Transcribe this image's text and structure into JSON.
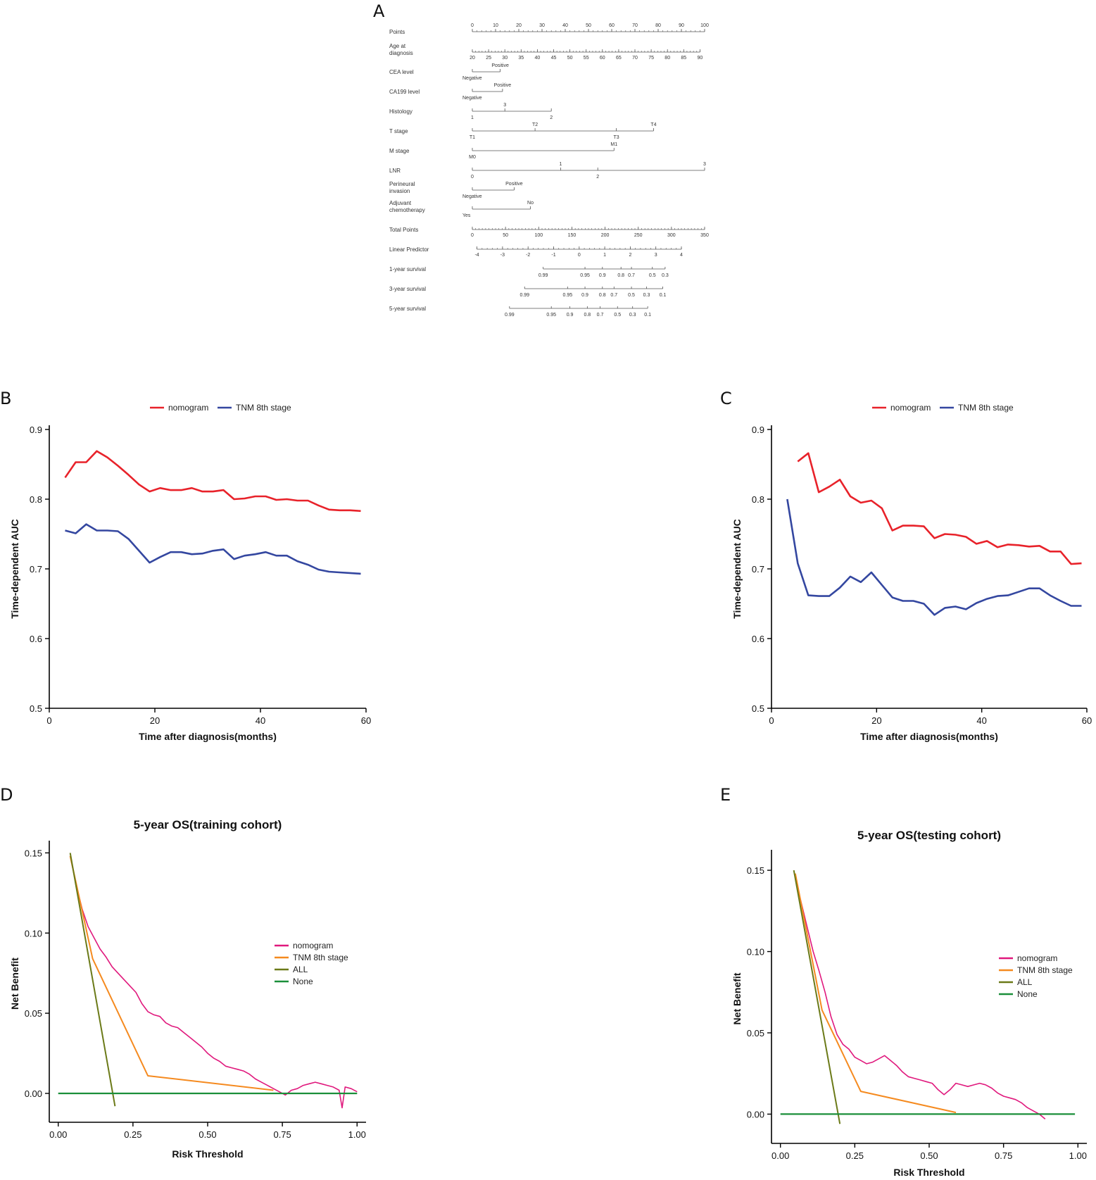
{
  "panels": {
    "A": "A",
    "B": "B",
    "C": "C",
    "D": "D",
    "E": "E"
  },
  "colors": {
    "nomogram_auc": "#e8222a",
    "tnm_auc": "#3447a0",
    "nomogram_dca": "#e0197d",
    "tnm_dca": "#f58a1f",
    "all_dca": "#6b7a18",
    "none_dca": "#1b8f3a"
  },
  "chart_data": [
    {
      "id": "A",
      "type": "table",
      "subtype": "nomogram",
      "rows": [
        {
          "label": "Points",
          "ticks": [
            "0",
            "10",
            "20",
            "30",
            "40",
            "50",
            "60",
            "70",
            "80",
            "90",
            "100"
          ]
        },
        {
          "label": "Age at diagnosis",
          "ticks": [
            "20",
            "25",
            "30",
            "35",
            "40",
            "45",
            "50",
            "55",
            "60",
            "65",
            "70",
            "75",
            "80",
            "85",
            "90"
          ]
        },
        {
          "label": "CEA level",
          "ticks": [
            "Negative",
            "Positive"
          ],
          "points": [
            0,
            12
          ]
        },
        {
          "label": "CA199 level",
          "ticks": [
            "Negative",
            "Positive"
          ],
          "points": [
            0,
            13
          ]
        },
        {
          "label": "Histology",
          "ticks": [
            "1",
            "3",
            "2"
          ],
          "points": [
            0,
            14,
            34
          ]
        },
        {
          "label": "T stage",
          "ticks": [
            "T1",
            "T2",
            "T3",
            "T4"
          ],
          "points": [
            0,
            27,
            62,
            78
          ]
        },
        {
          "label": "M stage",
          "ticks": [
            "M0",
            "M1"
          ],
          "points": [
            0,
            61
          ]
        },
        {
          "label": "LNR",
          "ticks": [
            "0",
            "1",
            "2",
            "3"
          ],
          "points": [
            0,
            38,
            54,
            100
          ]
        },
        {
          "label": "Perineural invasion",
          "ticks": [
            "Negative",
            "Positive"
          ],
          "points": [
            0,
            18
          ]
        },
        {
          "label": "Adjuvant chemotherapy",
          "ticks": [
            "Yes",
            "No"
          ],
          "points": [
            0,
            25
          ]
        },
        {
          "label": "Total Points",
          "ticks": [
            "0",
            "50",
            "100",
            "150",
            "200",
            "250",
            "300",
            "350"
          ]
        },
        {
          "label": "Linear Predictor",
          "ticks": [
            "-4",
            "-3",
            "-2",
            "-1",
            "0",
            "1",
            "2",
            "3",
            "4"
          ]
        },
        {
          "label": "1-year survival",
          "ticks": [
            "0.99",
            "0.95",
            "0.9",
            "0.8",
            "0.7",
            "0.5",
            "0.3"
          ]
        },
        {
          "label": "3-year survival",
          "ticks": [
            "0.99",
            "0.95",
            "0.9",
            "0.8",
            "0.7",
            "0.5",
            "0.3",
            "0.1"
          ]
        },
        {
          "label": "5-year survival",
          "ticks": [
            "0.99",
            "0.95",
            "0.9",
            "0.8",
            "0.7",
            "0.5",
            "0.3",
            "0.1"
          ]
        }
      ]
    },
    {
      "id": "B",
      "type": "line",
      "title": "",
      "xlabel": "Time after diagnosis(months)",
      "ylabel": "Time-dependent AUC",
      "xlim": [
        0,
        60
      ],
      "ylim": [
        0.5,
        0.9
      ],
      "xticks": [
        "0",
        "20",
        "40",
        "60"
      ],
      "yticks": [
        "0.5",
        "0.6",
        "0.7",
        "0.8",
        "0.9"
      ],
      "legend": [
        "nomogram",
        "TNM 8th stage"
      ],
      "series": [
        {
          "name": "nomogram",
          "x": [
            3,
            5,
            7,
            9,
            11,
            13,
            15,
            17,
            19,
            21,
            23,
            25,
            27,
            29,
            31,
            33,
            35,
            37,
            39,
            41,
            43,
            45,
            47,
            49,
            51,
            53,
            55,
            57,
            59
          ],
          "values": [
            0.831,
            0.853,
            0.853,
            0.869,
            0.86,
            0.848,
            0.835,
            0.821,
            0.811,
            0.816,
            0.813,
            0.813,
            0.816,
            0.811,
            0.811,
            0.813,
            0.8,
            0.801,
            0.804,
            0.804,
            0.799,
            0.8,
            0.798,
            0.798,
            0.791,
            0.785,
            0.784,
            0.784,
            0.783
          ]
        },
        {
          "name": "TNM 8th stage",
          "x": [
            3,
            5,
            7,
            9,
            11,
            13,
            15,
            17,
            19,
            21,
            23,
            25,
            27,
            29,
            31,
            33,
            35,
            37,
            39,
            41,
            43,
            45,
            47,
            49,
            51,
            53,
            55,
            57,
            59
          ],
          "values": [
            0.755,
            0.751,
            0.764,
            0.755,
            0.755,
            0.754,
            0.743,
            0.726,
            0.709,
            0.717,
            0.724,
            0.724,
            0.721,
            0.722,
            0.726,
            0.728,
            0.714,
            0.719,
            0.721,
            0.724,
            0.719,
            0.719,
            0.711,
            0.706,
            0.699,
            0.696,
            0.695,
            0.694,
            0.693
          ]
        }
      ]
    },
    {
      "id": "C",
      "type": "line",
      "title": "",
      "xlabel": "Time after diagnosis(months)",
      "ylabel": "Time-dependent AUC",
      "xlim": [
        0,
        60
      ],
      "ylim": [
        0.5,
        0.9
      ],
      "xticks": [
        "0",
        "20",
        "40",
        "60"
      ],
      "yticks": [
        "0.5",
        "0.6",
        "0.7",
        "0.8",
        "0.9"
      ],
      "legend": [
        "nomogram",
        "TNM 8th stage"
      ],
      "series": [
        {
          "name": "nomogram",
          "x": [
            5,
            7,
            9,
            11,
            13,
            15,
            17,
            19,
            21,
            23,
            25,
            27,
            29,
            31,
            33,
            35,
            37,
            39,
            41,
            43,
            45,
            47,
            49,
            51,
            53,
            55,
            57,
            59
          ],
          "values": [
            0.854,
            0.866,
            0.81,
            0.818,
            0.828,
            0.804,
            0.795,
            0.798,
            0.787,
            0.755,
            0.762,
            0.762,
            0.761,
            0.744,
            0.75,
            0.749,
            0.746,
            0.736,
            0.74,
            0.731,
            0.735,
            0.734,
            0.732,
            0.733,
            0.725,
            0.725,
            0.707,
            0.708
          ]
        },
        {
          "name": "TNM 8th stage",
          "x": [
            3,
            5,
            7,
            9,
            11,
            13,
            15,
            17,
            19,
            21,
            23,
            25,
            27,
            29,
            31,
            33,
            35,
            37,
            39,
            41,
            43,
            45,
            47,
            49,
            51,
            53,
            55,
            57,
            59
          ],
          "values": [
            0.8,
            0.708,
            0.662,
            0.661,
            0.661,
            0.673,
            0.689,
            0.681,
            0.695,
            0.677,
            0.659,
            0.654,
            0.654,
            0.65,
            0.634,
            0.644,
            0.646,
            0.642,
            0.651,
            0.657,
            0.661,
            0.662,
            0.667,
            0.672,
            0.672,
            0.662,
            0.654,
            0.647,
            0.647
          ]
        }
      ]
    },
    {
      "id": "D",
      "type": "line",
      "title": "5-year OS(training cohort)",
      "xlabel": "Risk Threshold",
      "ylabel": "Net Benefit",
      "xlim": [
        -0.03,
        1.03
      ],
      "ylim": [
        -0.018,
        0.155
      ],
      "xticks": [
        "0.00",
        "0.25",
        "0.50",
        "0.75",
        "1.00"
      ],
      "yticks": [
        "0.00",
        "0.05",
        "0.10",
        "0.15"
      ],
      "legend": [
        "nomogram",
        "TNM 8th stage",
        "ALL",
        "None"
      ],
      "series": [
        {
          "name": "nomogram",
          "x": [
            0.04,
            0.06,
            0.08,
            0.1,
            0.12,
            0.14,
            0.16,
            0.18,
            0.2,
            0.22,
            0.24,
            0.26,
            0.28,
            0.3,
            0.32,
            0.34,
            0.36,
            0.38,
            0.4,
            0.42,
            0.44,
            0.46,
            0.48,
            0.5,
            0.52,
            0.54,
            0.56,
            0.58,
            0.6,
            0.62,
            0.64,
            0.66,
            0.68,
            0.7,
            0.72,
            0.74,
            0.76,
            0.78,
            0.8,
            0.82,
            0.84,
            0.86,
            0.88,
            0.9,
            0.92,
            0.94,
            0.95,
            0.96,
            0.98,
            1.0
          ],
          "values": [
            0.148,
            0.13,
            0.115,
            0.104,
            0.097,
            0.09,
            0.085,
            0.079,
            0.075,
            0.071,
            0.067,
            0.063,
            0.056,
            0.051,
            0.049,
            0.048,
            0.044,
            0.042,
            0.041,
            0.038,
            0.035,
            0.032,
            0.029,
            0.025,
            0.022,
            0.02,
            0.017,
            0.016,
            0.015,
            0.014,
            0.012,
            0.009,
            0.007,
            0.005,
            0.003,
            0.001,
            -0.001,
            0.002,
            0.003,
            0.005,
            0.006,
            0.007,
            0.006,
            0.005,
            0.004,
            0.002,
            -0.009,
            0.004,
            0.003,
            0.001
          ]
        },
        {
          "name": "TNM 8th stage",
          "x": [
            0.04,
            0.115,
            0.3,
            0.72
          ],
          "values": [
            0.148,
            0.084,
            0.011,
            0.002
          ]
        },
        {
          "name": "ALL",
          "x": [
            0.04,
            0.19
          ],
          "values": [
            0.15,
            -0.008
          ]
        },
        {
          "name": "None",
          "x": [
            0.0,
            1.0
          ],
          "values": [
            0.0,
            0.0
          ]
        }
      ]
    },
    {
      "id": "E",
      "type": "line",
      "title": "5-year OS(testing cohort)",
      "xlabel": "Risk Threshold",
      "ylabel": "Net Benefit",
      "xlim": [
        -0.03,
        1.03
      ],
      "ylim": [
        -0.018,
        0.16
      ],
      "xticks": [
        "0.00",
        "0.25",
        "0.50",
        "0.75",
        "1.00"
      ],
      "yticks": [
        "0.00",
        "0.05",
        "0.10",
        "0.15"
      ],
      "legend": [
        "nomogram",
        "TNM 8th stage",
        "ALL",
        "None"
      ],
      "series": [
        {
          "name": "nomogram",
          "x": [
            0.05,
            0.07,
            0.09,
            0.11,
            0.13,
            0.15,
            0.17,
            0.19,
            0.21,
            0.23,
            0.25,
            0.27,
            0.29,
            0.31,
            0.33,
            0.35,
            0.37,
            0.39,
            0.41,
            0.43,
            0.45,
            0.47,
            0.49,
            0.51,
            0.53,
            0.55,
            0.57,
            0.59,
            0.61,
            0.63,
            0.65,
            0.67,
            0.69,
            0.71,
            0.73,
            0.75,
            0.77,
            0.79,
            0.81,
            0.83,
            0.85,
            0.87,
            0.89
          ],
          "values": [
            0.145,
            0.13,
            0.115,
            0.1,
            0.088,
            0.075,
            0.06,
            0.049,
            0.043,
            0.04,
            0.035,
            0.033,
            0.031,
            0.032,
            0.034,
            0.036,
            0.033,
            0.03,
            0.026,
            0.023,
            0.022,
            0.021,
            0.02,
            0.019,
            0.015,
            0.012,
            0.015,
            0.019,
            0.018,
            0.017,
            0.018,
            0.019,
            0.018,
            0.016,
            0.013,
            0.011,
            0.01,
            0.009,
            0.007,
            0.004,
            0.002,
            0.0,
            -0.003
          ]
        },
        {
          "name": "TNM 8th stage",
          "x": [
            0.05,
            0.14,
            0.27,
            0.59
          ],
          "values": [
            0.148,
            0.064,
            0.014,
            0.001
          ]
        },
        {
          "name": "ALL",
          "x": [
            0.045,
            0.2
          ],
          "values": [
            0.15,
            -0.006
          ]
        },
        {
          "name": "None",
          "x": [
            0.0,
            0.99
          ],
          "values": [
            0.0,
            0.0
          ]
        }
      ]
    }
  ]
}
